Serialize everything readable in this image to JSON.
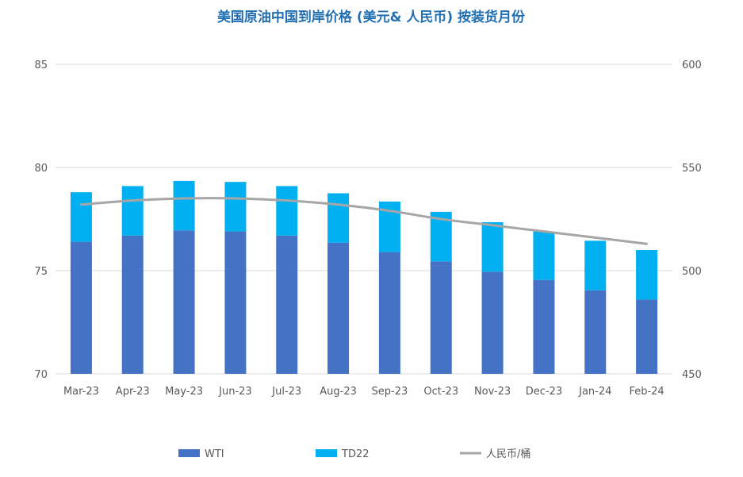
{
  "chart_data": {
    "type": "bar",
    "title": "美国原油中国到岸价格 (美元& 人民币) 按装货月份",
    "categories": [
      "Mar-23",
      "Apr-23",
      "May-23",
      "Jun-23",
      "Jul-23",
      "Aug-23",
      "Sep-23",
      "Oct-23",
      "Nov-23",
      "Dec-23",
      "Jan-24",
      "Feb-24"
    ],
    "series": [
      {
        "name": "WTI",
        "type": "bar",
        "stacked": true,
        "axis": "left",
        "color": "#4472c4",
        "values": [
          76.4,
          76.7,
          76.95,
          76.9,
          76.7,
          76.35,
          75.9,
          75.45,
          74.95,
          74.55,
          74.05,
          73.6
        ]
      },
      {
        "name": "TD22",
        "type": "bar",
        "stacked": true,
        "axis": "left",
        "color": "#00b0f0",
        "values": [
          2.4,
          2.4,
          2.4,
          2.4,
          2.4,
          2.4,
          2.45,
          2.4,
          2.4,
          2.35,
          2.4,
          2.4
        ]
      },
      {
        "name": "人民币/桶",
        "type": "line",
        "axis": "right",
        "color": "#a6a6a6",
        "values": [
          532,
          534,
          535,
          535,
          534,
          532,
          529,
          525,
          522,
          519,
          516,
          513
        ]
      }
    ],
    "y_left": {
      "min": 70,
      "max": 85,
      "ticks": [
        70,
        75,
        80,
        85
      ]
    },
    "y_right": {
      "min": 450,
      "max": 600,
      "ticks": [
        450,
        500,
        550,
        600
      ]
    },
    "grid": true,
    "legend_position": "bottom"
  }
}
